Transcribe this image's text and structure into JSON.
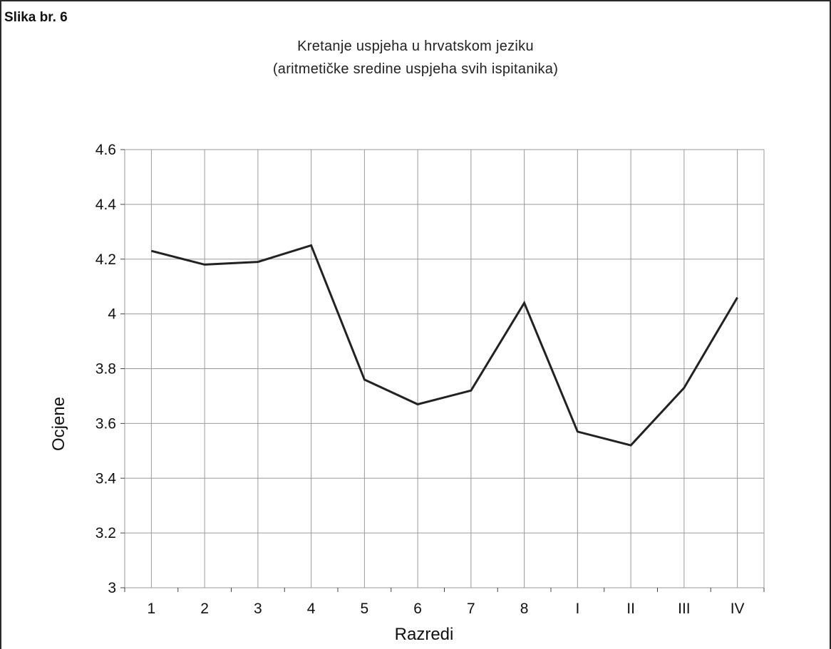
{
  "figure_label": "Slika br. 6",
  "chart_data": {
    "type": "line",
    "title": "Kretanje uspjeha u hrvatskom jeziku",
    "subtitle": "(aritmetičke sredine uspjeha svih ispitanika)",
    "xlabel": "Razredi",
    "ylabel": "Ocjene",
    "categories": [
      "1",
      "2",
      "3",
      "4",
      "5",
      "6",
      "7",
      "8",
      "I",
      "II",
      "III",
      "IV"
    ],
    "values": [
      4.23,
      4.18,
      4.19,
      4.25,
      3.76,
      3.67,
      3.72,
      4.04,
      3.57,
      3.52,
      3.73,
      4.06
    ],
    "ylim": [
      3,
      4.6
    ],
    "yticks": [
      "3",
      "3.2",
      "3.4",
      "3.6",
      "3.8",
      "4",
      "4.2",
      "4.4",
      "4.6"
    ],
    "ytick_values": [
      3,
      3.2,
      3.4,
      3.6,
      3.8,
      4,
      4.2,
      4.4,
      4.6
    ],
    "grid": true,
    "line_color": "#222222",
    "grid_color": "#9a9a9a"
  }
}
